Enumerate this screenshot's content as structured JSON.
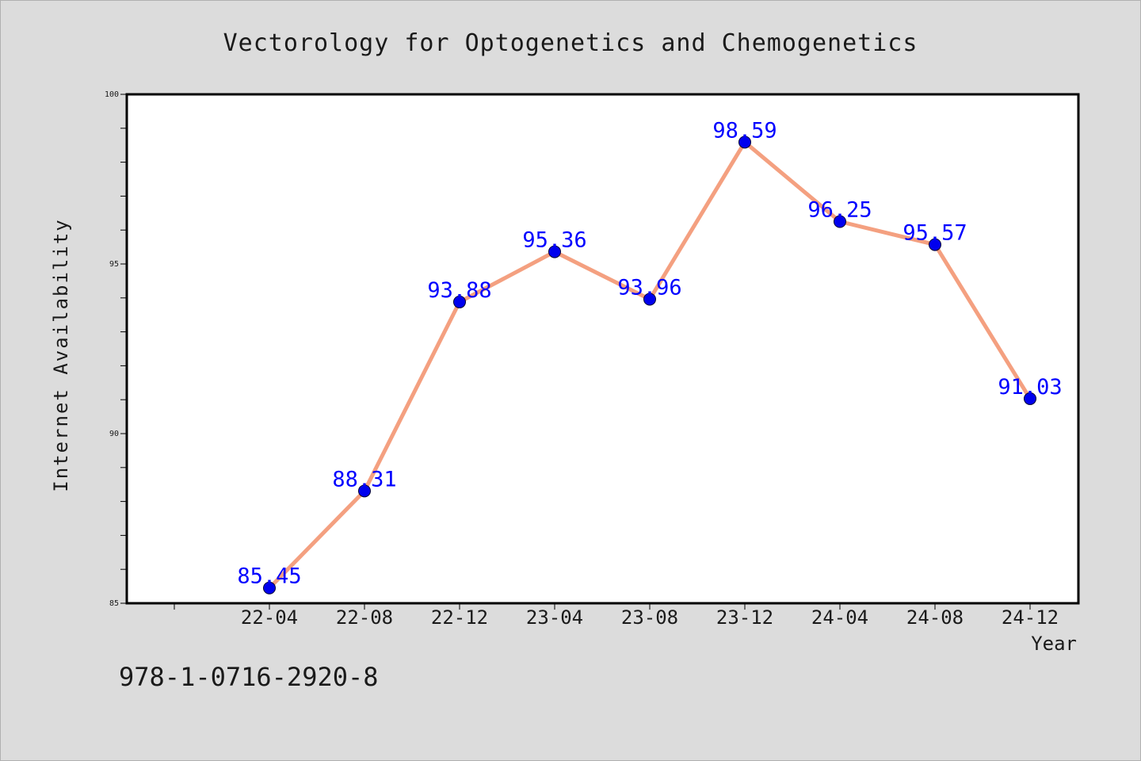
{
  "chart_data": {
    "type": "line",
    "title": "Vectorology for Optogenetics and Chemogenetics",
    "xlabel": "Year",
    "ylabel": "Internet Availability",
    "categories": [
      "22-04",
      "22-08",
      "22-12",
      "23-04",
      "23-08",
      "23-12",
      "24-04",
      "24-08",
      "24-12"
    ],
    "series": [
      {
        "values": [
          85.45,
          88.31,
          93.88,
          95.36,
          93.96,
          98.59,
          96.25,
          95.57,
          91.03
        ],
        "labels": [
          "85.45",
          "88.31",
          "93.88",
          "95.36",
          "93.96",
          "98.59",
          "96.25",
          "95.57",
          "91.03"
        ],
        "line_color": "#f4a080",
        "marker_color": "#0000ee",
        "label_color": "#0000ff"
      }
    ],
    "ylim": [
      85,
      100
    ],
    "yticks": [
      "85",
      "90",
      "95",
      "100"
    ],
    "grid": false,
    "plot_background": "#ffffff",
    "page_background": "#dcdcdc"
  },
  "footer_text": "978-1-0716-2920-8"
}
